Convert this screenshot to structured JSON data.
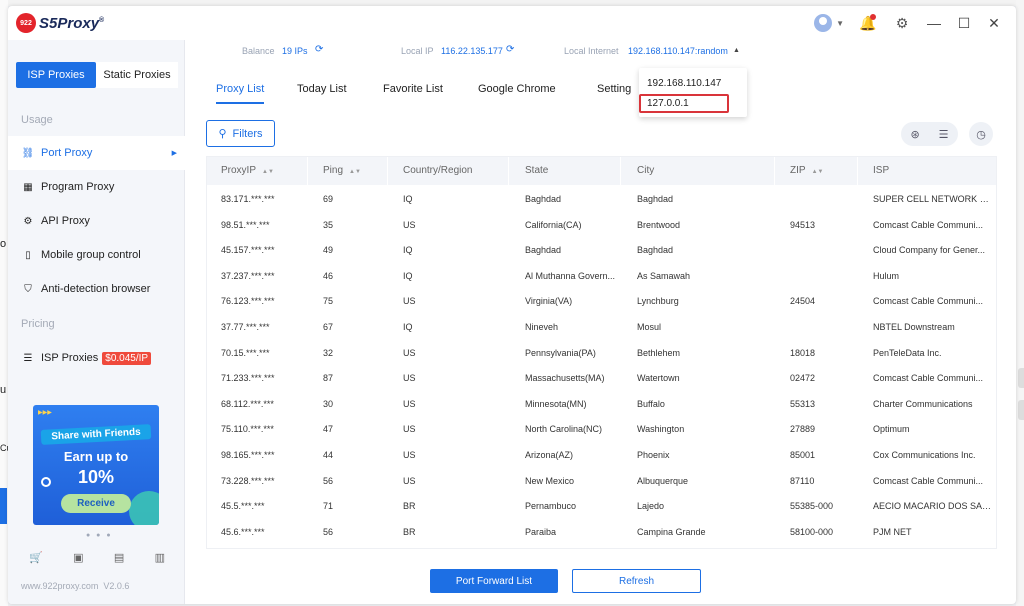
{
  "app": {
    "logo_mark": "922",
    "logo_text": "S5Proxy",
    "logo_reg": "®",
    "version_site": "www.922proxy.com",
    "version": "V2.0.6"
  },
  "background": {
    "fragments": [
      "o",
      "u",
      "Cu"
    ]
  },
  "sidebar": {
    "segments": [
      "ISP Proxies",
      "Static Proxies"
    ],
    "section_usage": "Usage",
    "section_pricing": "Pricing",
    "items": [
      {
        "label": "Port Proxy",
        "icon": "sitemap-icon"
      },
      {
        "label": "Program Proxy",
        "icon": "grid-icon"
      },
      {
        "label": "API Proxy",
        "icon": "api-icon"
      },
      {
        "label": "Mobile group control",
        "icon": "mobile-icon"
      },
      {
        "label": "Anti-detection browser",
        "icon": "shield-icon"
      }
    ],
    "pricing_item": {
      "label": "ISP Proxies",
      "price": "$0.045/IP",
      "icon": "list-icon"
    },
    "banner": {
      "line1": "Share with Friends",
      "line2": "Earn up to",
      "line3": "10%",
      "button": "Receive"
    }
  },
  "infobar": {
    "balance_label": "Balance",
    "balance_value": "19 IPs",
    "local_ip_label": "Local IP",
    "local_ip_value": "116.22.135.177",
    "local_internet_label": "Local Internet",
    "local_internet_value": "192.168.110.147:random"
  },
  "tabs": [
    "Proxy List",
    "Today List",
    "Favorite List",
    "Google Chrome",
    "Setting"
  ],
  "dropdown": {
    "options": [
      "192.168.110.147",
      "127.0.0.1"
    ]
  },
  "filters_label": "Filters",
  "table": {
    "columns": [
      "ProxyIP",
      "Ping",
      "Country/Region",
      "State",
      "City",
      "ZIP",
      "ISP"
    ],
    "rows": [
      [
        "83.171.***.***",
        "69",
        "IQ",
        "Baghdad",
        "Baghdad",
        "",
        "SUPER CELL NETWORK FOR I..."
      ],
      [
        "98.51.***.***",
        "35",
        "US",
        "California(CA)",
        "Brentwood",
        "94513",
        "Comcast Cable Communi..."
      ],
      [
        "45.157.***.***",
        "49",
        "IQ",
        "Baghdad",
        "Baghdad",
        "",
        "Cloud Company for Gener..."
      ],
      [
        "37.237.***.***",
        "46",
        "IQ",
        "Al Muthanna Govern...",
        "As Samawah",
        "",
        "Hulum"
      ],
      [
        "76.123.***.***",
        "75",
        "US",
        "Virginia(VA)",
        "Lynchburg",
        "24504",
        "Comcast Cable Communi..."
      ],
      [
        "37.77.***.***",
        "67",
        "IQ",
        "Nineveh",
        "Mosul",
        "",
        "NBTEL Downstream"
      ],
      [
        "70.15.***.***",
        "32",
        "US",
        "Pennsylvania(PA)",
        "Bethlehem",
        "18018",
        "PenTeleData Inc."
      ],
      [
        "71.233.***.***",
        "87",
        "US",
        "Massachusetts(MA)",
        "Watertown",
        "02472",
        "Comcast Cable Communi..."
      ],
      [
        "68.112.***.***",
        "30",
        "US",
        "Minnesota(MN)",
        "Buffalo",
        "55313",
        "Charter Communications"
      ],
      [
        "75.110.***.***",
        "47",
        "US",
        "North Carolina(NC)",
        "Washington",
        "27889",
        "Optimum"
      ],
      [
        "98.165.***.***",
        "44",
        "US",
        "Arizona(AZ)",
        "Phoenix",
        "85001",
        "Cox Communications Inc."
      ],
      [
        "73.228.***.***",
        "56",
        "US",
        "New Mexico",
        "Albuquerque",
        "87110",
        "Comcast Cable Communi..."
      ],
      [
        "45.5.***.***",
        "71",
        "BR",
        "Pernambuco",
        "Lajedo",
        "55385-000",
        "AECIO MACARIO DOS SANT..."
      ],
      [
        "45.6.***.***",
        "56",
        "BR",
        "Paraiba",
        "Campina Grande",
        "58100-000",
        "PJM NET"
      ]
    ]
  },
  "buttons": {
    "port_forward": "Port Forward List",
    "refresh": "Refresh"
  }
}
